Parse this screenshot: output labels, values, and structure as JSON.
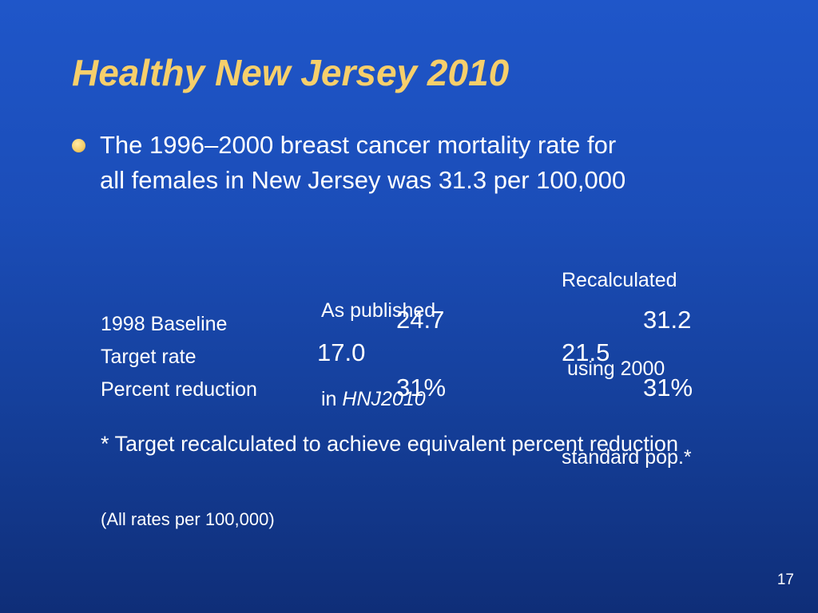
{
  "slide": {
    "title": "Healthy New Jersey 2010",
    "bullet": {
      "line1": "The 1996–2000 breast cancer mortality rate for",
      "line2": "all females in New Jersey was 31.3 per 100,000"
    },
    "columns": {
      "published_line1": "As published",
      "published_in": "in ",
      "published_source": "HNJ2010",
      "recalc_line1": "Recalculated",
      "recalc_line2": " using 2000",
      "recalc_line3": "standard pop.*"
    },
    "rows": [
      {
        "label": "1998 Baseline",
        "published": "24.7",
        "recalculated": "31.2"
      },
      {
        "label": "Target rate",
        "published": "17.0",
        "recalculated": "21.5"
      },
      {
        "label": "Percent reduction",
        "published": "31%",
        "recalculated": "31%"
      }
    ],
    "footnote": "* Target recalculated to achieve equivalent percent reduction",
    "note": "(All rates per 100,000)",
    "page_number": "17"
  }
}
